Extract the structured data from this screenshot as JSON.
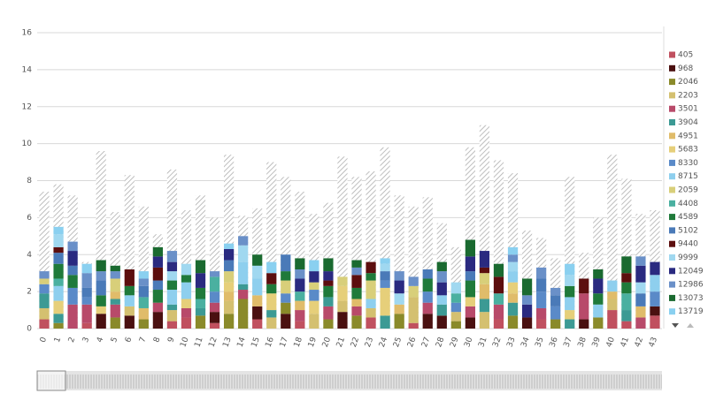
{
  "chart_data": {
    "type": "bar",
    "stacked": true,
    "categories": [
      "0",
      "1",
      "2",
      "3",
      "4",
      "5",
      "6",
      "7",
      "8",
      "9",
      "10",
      "11",
      "12",
      "13",
      "14",
      "15",
      "16",
      "17",
      "18",
      "19",
      "20",
      "21",
      "22",
      "23",
      "24",
      "25",
      "26",
      "27",
      "28",
      "29",
      "30",
      "31",
      "32",
      "33",
      "34",
      "35",
      "36",
      "37",
      "38",
      "39",
      "40",
      "41",
      "42",
      "43"
    ],
    "ylim": [
      0,
      16
    ],
    "yticks": [
      0,
      2,
      4,
      6,
      8,
      10,
      12,
      14,
      16
    ],
    "grid": true,
    "legend": "right",
    "reference_values": [
      7.4,
      7.8,
      7.2,
      3.6,
      9.6,
      6.3,
      8.3,
      6.6,
      5.1,
      8.6,
      6.4,
      7.2,
      6.0,
      9.4,
      6.1,
      6.5,
      9.0,
      8.2,
      7.4,
      6.2,
      6.8,
      9.3,
      8.2,
      8.5,
      9.8,
      7.2,
      6.6,
      7.1,
      5.7,
      4.4,
      9.8,
      11.0,
      9.1,
      8.4,
      5.3,
      4.9,
      3.8,
      8.2,
      4.1,
      6.0,
      9.4,
      8.1,
      6.2,
      6.4
    ],
    "series": [
      {
        "name": "405",
        "color": "#c0505f",
        "values": [
          0.5,
          0,
          0,
          0.3,
          0,
          0,
          0,
          0,
          0,
          0.4,
          0.6,
          0,
          0.3,
          0,
          0,
          0.5,
          0,
          0,
          0.4,
          0,
          0,
          0,
          0,
          0.6,
          0,
          0,
          0.3,
          0,
          0,
          0,
          0,
          0,
          0.5,
          0,
          0,
          0.5,
          0,
          0,
          0,
          0,
          1.0,
          0.4,
          0,
          0.7
        ]
      },
      {
        "name": "968",
        "color": "#4a1010",
        "values": [
          0,
          0,
          0,
          0,
          0.8,
          0,
          0.7,
          0,
          0.9,
          0,
          0,
          0,
          0.6,
          0,
          0,
          0.7,
          0,
          0.8,
          0,
          0,
          0,
          0.9,
          0,
          0,
          0,
          0,
          0,
          0.8,
          0.7,
          0,
          0.6,
          0,
          0,
          0,
          0.6,
          0,
          0,
          0,
          0.5,
          0,
          0,
          0,
          0,
          0.5
        ]
      },
      {
        "name": "2046",
        "color": "#8a8a2a",
        "values": [
          0,
          0.3,
          0,
          0,
          0,
          0.6,
          0,
          0.5,
          0,
          0,
          0,
          0.7,
          0,
          0.8,
          1.6,
          0,
          0,
          0.6,
          0,
          0,
          0.5,
          0,
          0.7,
          0,
          0,
          0.8,
          0,
          0,
          0,
          0.4,
          0,
          0,
          0,
          0.7,
          0,
          0,
          0.5,
          0,
          0,
          0.6,
          0,
          0,
          0,
          0
        ]
      },
      {
        "name": "2203",
        "color": "#d4c070",
        "values": [
          0.6,
          0,
          0,
          0,
          0,
          0,
          0.5,
          0,
          0,
          0.6,
          0,
          0,
          0,
          0.7,
          0,
          0,
          0.6,
          0,
          0,
          0.8,
          0,
          0.6,
          0,
          0.5,
          0,
          0,
          1.4,
          0,
          0,
          0.5,
          0,
          0.9,
          0,
          0,
          0,
          0,
          0,
          0,
          0,
          0,
          0.6,
          0,
          0,
          0
        ]
      },
      {
        "name": "3501",
        "color": "#b84a6a",
        "values": [
          0,
          0,
          1.3,
          1.0,
          0,
          0.7,
          0,
          0,
          0.5,
          0,
          0.5,
          0,
          0.5,
          0,
          0.5,
          0,
          0,
          0,
          0.6,
          0,
          0.7,
          0,
          0.5,
          0,
          0,
          0,
          0,
          0.6,
          0,
          0,
          0.6,
          0,
          0.8,
          0,
          0,
          0.6,
          0,
          0,
          1.4,
          0,
          0,
          0,
          0.6,
          0
        ]
      },
      {
        "name": "3904",
        "color": "#3c9a94",
        "values": [
          0.8,
          0.5,
          0,
          0,
          0,
          0.3,
          0,
          0,
          0,
          0.3,
          0,
          0.4,
          0,
          0,
          0.3,
          0,
          0.4,
          0,
          0,
          0,
          0.5,
          0,
          0,
          0,
          0.7,
          0,
          0,
          0,
          0.6,
          0,
          0,
          0.7,
          0,
          0.7,
          0,
          0,
          0,
          0.5,
          0,
          0,
          0,
          0.6,
          0,
          0
        ]
      },
      {
        "name": "4951",
        "color": "#e0bc6a",
        "values": [
          0,
          0,
          0,
          0,
          0,
          0.4,
          0,
          0.6,
          0,
          0,
          0,
          0,
          0,
          0.5,
          0,
          0.6,
          0,
          0,
          0.5,
          0,
          0,
          0,
          0.4,
          0,
          0,
          0.5,
          0,
          0,
          0,
          0,
          0,
          0.8,
          0,
          0.5,
          0,
          0,
          0,
          0,
          0,
          0,
          0.4,
          0,
          0.6,
          0
        ]
      },
      {
        "name": "5683",
        "color": "#e6cf7a",
        "values": [
          0,
          0.7,
          0,
          0,
          0.4,
          0,
          0,
          0,
          0,
          0,
          0.5,
          0,
          0,
          0.5,
          0,
          0,
          0.9,
          0,
          0,
          0.7,
          0,
          0.8,
          0,
          0,
          1.5,
          0,
          0,
          0,
          0,
          0,
          0.5,
          0,
          0,
          0.6,
          0,
          0,
          0,
          0.5,
          0,
          0,
          0,
          0,
          0,
          0
        ]
      },
      {
        "name": "8330",
        "color": "#5a8ac8",
        "values": [
          0.5,
          0,
          0.9,
          0.4,
          0,
          0,
          0,
          0,
          0,
          0,
          0,
          0,
          0.6,
          0,
          0,
          0,
          0,
          0.5,
          0,
          0.6,
          0,
          0,
          0,
          0,
          0.4,
          0,
          0,
          0.6,
          0,
          0.5,
          0,
          0,
          0,
          0,
          0,
          0.9,
          0.7,
          0,
          0,
          0,
          0,
          0,
          0,
          0.8
        ]
      },
      {
        "name": "8715",
        "color": "#8ecfee",
        "values": [
          0,
          0.8,
          0,
          0,
          0,
          0,
          0.6,
          0,
          0,
          0.8,
          0.9,
          0,
          0,
          0,
          1.2,
          0.9,
          0,
          0,
          0,
          0,
          0,
          0,
          0,
          0.5,
          0,
          0,
          0,
          0,
          0.5,
          0,
          0,
          0,
          0,
          0.6,
          0,
          0,
          0,
          0.7,
          0,
          0.7,
          0.6,
          0,
          0,
          0.9
        ]
      },
      {
        "name": "2059",
        "color": "#d8cf7a",
        "values": [
          0.3,
          0,
          0,
          0,
          0,
          0.7,
          0,
          0,
          0,
          0,
          0,
          0,
          0,
          0.6,
          0,
          0,
          0,
          0.7,
          0,
          0.4,
          0,
          0.5,
          0,
          1.0,
          0,
          0,
          0.6,
          0,
          0,
          0,
          0,
          0.6,
          0,
          0,
          0,
          0,
          0,
          0,
          0,
          0,
          0,
          0,
          0,
          0
        ]
      },
      {
        "name": "4408",
        "color": "#4ab0a0",
        "values": [
          0,
          0.4,
          0,
          0,
          0,
          0,
          0,
          0.6,
          0,
          0,
          0,
          0.5,
          0.8,
          0,
          0,
          0,
          0,
          0,
          0.5,
          0,
          0,
          0,
          0,
          0,
          0,
          0,
          0,
          0,
          0,
          0.5,
          0,
          0,
          0.6,
          0,
          0,
          0,
          0,
          0,
          0,
          0,
          0,
          0.9,
          0,
          0
        ]
      },
      {
        "name": "4589",
        "color": "#1f7a3a",
        "values": [
          0,
          0.8,
          0.7,
          0,
          0.6,
          0,
          0.5,
          0,
          0.7,
          0.5,
          0.4,
          0.6,
          0,
          0,
          0,
          0,
          0.5,
          0.5,
          0,
          0,
          0.6,
          0,
          0.6,
          0.4,
          0,
          0,
          0,
          0.7,
          0,
          0,
          0.9,
          0,
          0,
          0,
          0,
          0,
          0,
          0.6,
          0,
          0.6,
          0,
          0.6,
          0,
          0
        ]
      },
      {
        "name": "5102",
        "color": "#4a7ab8",
        "values": [
          0,
          0.6,
          0.5,
          0.5,
          0.8,
          0,
          0,
          0.6,
          0.5,
          0,
          0,
          0,
          0,
          0.6,
          0,
          0,
          0,
          0.9,
          0,
          0,
          0,
          0,
          0,
          0,
          0.5,
          0,
          0,
          0.5,
          0,
          0,
          0.5,
          0,
          0,
          0,
          0,
          0.7,
          0.6,
          0,
          0,
          0,
          0,
          0,
          0.7,
          0
        ]
      },
      {
        "name": "9440",
        "color": "#5c0e0e",
        "values": [
          0,
          0.3,
          0,
          0,
          0,
          0,
          0.9,
          0,
          0.7,
          0,
          0,
          0,
          0,
          0,
          0,
          0,
          0.6,
          0,
          0,
          0,
          0.3,
          0,
          0.7,
          0.6,
          0,
          0,
          0,
          0,
          0,
          0,
          0,
          0.3,
          0.9,
          0,
          0,
          0,
          0,
          0,
          0.8,
          0,
          0,
          0.5,
          0,
          0
        ]
      },
      {
        "name": "9999",
        "color": "#a0d8f0",
        "values": [
          0,
          0.7,
          0,
          0,
          0,
          0,
          0,
          0,
          0,
          0.5,
          0.6,
          0,
          0,
          0,
          0.9,
          0.7,
          0,
          0,
          0,
          0,
          0,
          0,
          0,
          0,
          0.4,
          0.6,
          0,
          0,
          0,
          0.6,
          0,
          0,
          0,
          0.5,
          0,
          0,
          0,
          0.6,
          0,
          0,
          0,
          0,
          0.6,
          0
        ]
      },
      {
        "name": "12049",
        "color": "#2a2a80",
        "values": [
          0,
          0,
          0.8,
          0,
          0,
          0,
          0,
          0,
          0.6,
          0.5,
          0,
          0.8,
          0,
          0.6,
          0,
          0,
          0,
          0,
          0.7,
          0.6,
          0.5,
          0,
          0,
          0,
          0,
          0.7,
          0,
          0,
          0.7,
          0,
          0.8,
          0.9,
          0,
          0,
          0.7,
          0,
          0,
          0,
          0,
          0.8,
          0,
          0,
          0.9,
          0.7
        ]
      },
      {
        "name": "12986",
        "color": "#6a90c8",
        "values": [
          0.4,
          0,
          0.5,
          0.8,
          0.5,
          0.4,
          0,
          0.4,
          0,
          0.6,
          0,
          0,
          0.3,
          0,
          0.5,
          0,
          0,
          0,
          0.5,
          0,
          0,
          0,
          0.4,
          0,
          0,
          0.5,
          0.5,
          0,
          0.6,
          0,
          0,
          0,
          0,
          0.4,
          0.5,
          0.6,
          0.4,
          0,
          0,
          0,
          0,
          0,
          0.5,
          0
        ]
      },
      {
        "name": "13073",
        "color": "#1a6a30",
        "values": [
          0,
          0,
          0,
          0,
          0.6,
          0.3,
          0,
          0,
          0.5,
          0,
          0,
          0.7,
          0,
          0,
          0,
          0.6,
          0,
          0,
          0.6,
          0,
          0.7,
          0,
          0.4,
          0,
          0,
          0,
          0,
          0,
          0.5,
          0,
          0.9,
          0,
          0.7,
          0,
          0.9,
          0,
          0,
          0,
          0,
          0.5,
          0,
          0.9,
          0,
          0
        ]
      },
      {
        "name": "13719",
        "color": "#8ad0f0",
        "values": [
          0,
          0.4,
          0,
          0.5,
          0,
          0,
          0,
          0.4,
          0,
          0,
          0,
          0,
          0,
          0.3,
          0,
          0,
          0.6,
          0,
          0,
          0.6,
          0,
          0,
          0,
          0,
          0.3,
          0,
          0,
          0,
          0,
          0,
          0,
          0,
          0,
          0.4,
          0,
          0,
          0,
          0.6,
          0,
          0,
          0,
          0,
          0,
          0
        ]
      }
    ]
  }
}
